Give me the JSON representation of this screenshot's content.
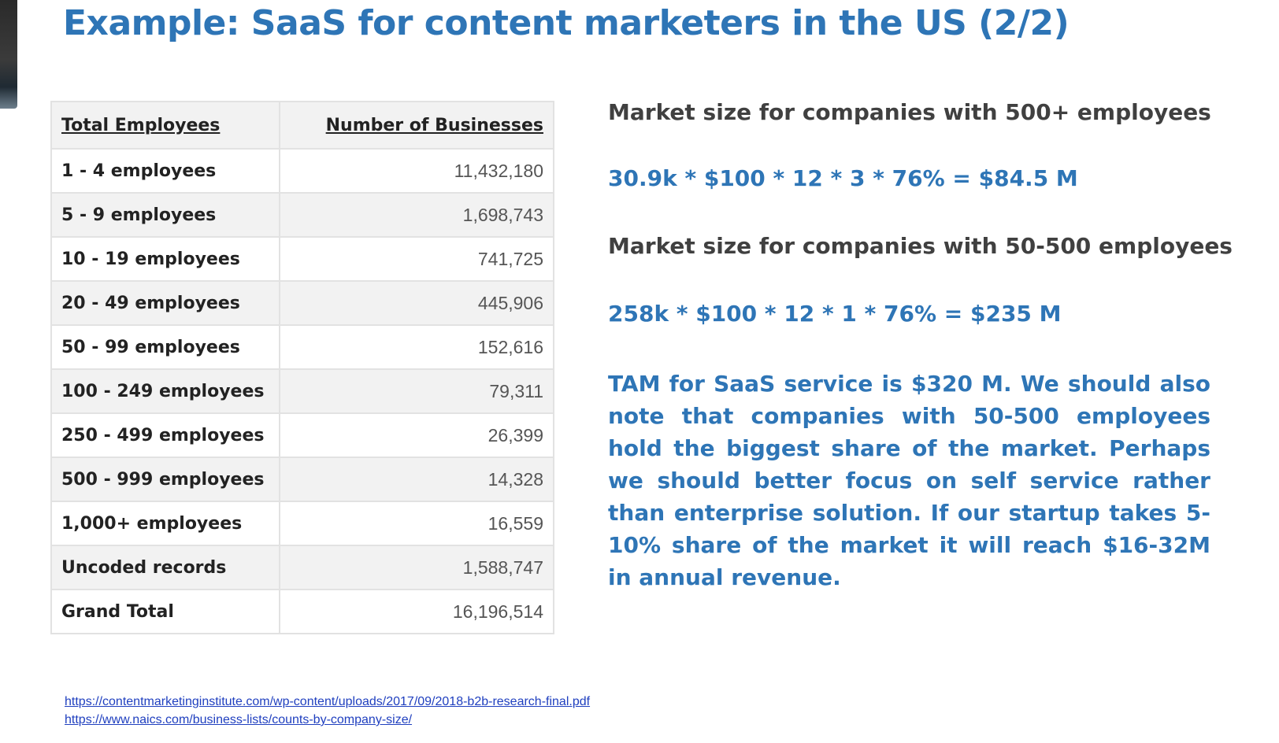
{
  "slide": {
    "title": "Example: SaaS for content marketers in the US (2/2)"
  },
  "table": {
    "headers": [
      "Total Employees",
      "Number of Businesses"
    ],
    "rows": [
      {
        "label": "1 - 4 employees",
        "value": "11,432,180"
      },
      {
        "label": "5 - 9 employees",
        "value": "1,698,743"
      },
      {
        "label": "10 - 19 employees",
        "value": "741,725"
      },
      {
        "label": "20 - 49 employees",
        "value": "445,906"
      },
      {
        "label": "50 - 99 employees",
        "value": "152,616"
      },
      {
        "label": "100 - 249 employees",
        "value": "79,311"
      },
      {
        "label": "250 - 499 employees",
        "value": "26,399"
      },
      {
        "label": "500 - 999 employees",
        "value": "14,328"
      },
      {
        "label": "1,000+ employees",
        "value": "16,559"
      },
      {
        "label": "Uncoded records",
        "value": "1,588,747"
      },
      {
        "label": "Grand Total",
        "value": "16,196,514"
      }
    ]
  },
  "analysis": {
    "large_heading": "Market size for companies with 500+ employees",
    "large_formula": "30.9k * $100 * 12 * 3 * 76% = $84.5 M",
    "mid_heading": "Market size for companies with 50-500 employees",
    "mid_formula": "258k * $100 * 12 * 1 * 76% = $235 M",
    "conclusion": "TAM for SaaS service is $320 M. We should also note that companies with 50-500 employees hold the biggest share of the market. Perhaps we should better focus on self service rather than enterprise solution. If our startup takes 5-10% share of the market it will reach $16-32M in annual revenue."
  },
  "sources": [
    "https://contentmarketinginstitute.com/wp-content/uploads/2017/09/2018-b2b-research-final.pdf",
    "https://www.naics.com/business-lists/counts-by-company-size/"
  ],
  "colors": {
    "accent_blue": "#2e75b6",
    "heading_gray": "#404040",
    "link_blue": "#1f3fbf"
  }
}
